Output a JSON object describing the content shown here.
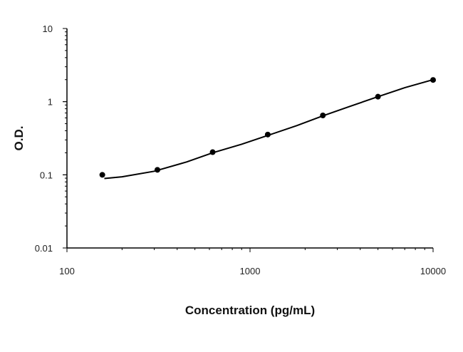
{
  "chart_data": {
    "type": "scatter",
    "xlabel": "Concentration (pg/mL)",
    "ylabel": "O.D.",
    "xscale": "log",
    "yscale": "log",
    "xlim": [
      100,
      10000
    ],
    "ylim": [
      0.01,
      10
    ],
    "x_ticks": [
      {
        "value": 100,
        "label": "100"
      },
      {
        "value": 1000,
        "label": "1000"
      },
      {
        "value": 10000,
        "label": "10000"
      }
    ],
    "y_ticks": [
      {
        "value": 0.01,
        "label": "0.01"
      },
      {
        "value": 0.1,
        "label": "0.1"
      },
      {
        "value": 1,
        "label": "1"
      },
      {
        "value": 10,
        "label": "10"
      }
    ],
    "points": {
      "x": [
        156,
        312,
        625,
        1250,
        2500,
        5000,
        10000
      ],
      "y": [
        0.1,
        0.117,
        0.204,
        0.355,
        0.648,
        1.17,
        1.98
      ]
    },
    "fit_curve": {
      "x": [
        160,
        200,
        300,
        450,
        625,
        900,
        1250,
        1800,
        2500,
        3500,
        5000,
        7000,
        10000
      ],
      "y": [
        0.089,
        0.094,
        0.112,
        0.15,
        0.2,
        0.262,
        0.345,
        0.47,
        0.64,
        0.86,
        1.17,
        1.55,
        2.0
      ]
    },
    "grid": false,
    "legend": "none"
  }
}
